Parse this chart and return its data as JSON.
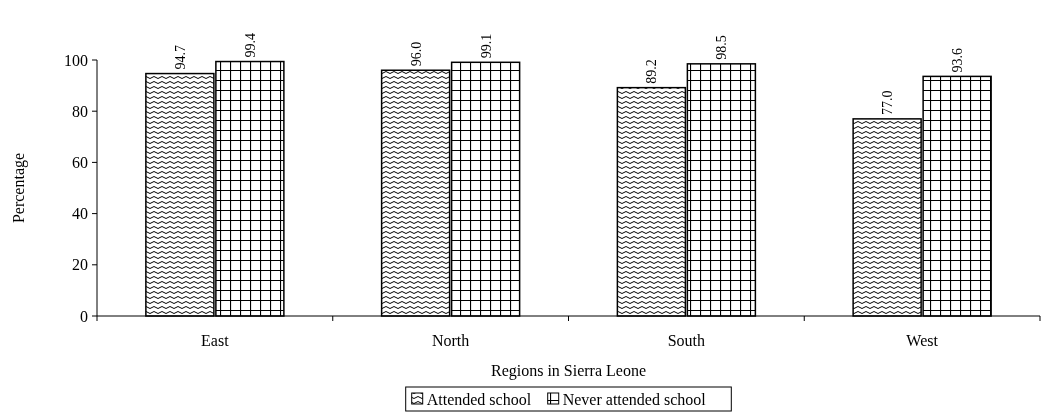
{
  "chart_data": {
    "type": "bar",
    "xlabel": "Regions in Sierra Leone",
    "ylabel": "Percentage",
    "categories": [
      "East",
      "North",
      "South",
      "West"
    ],
    "series": [
      {
        "name": "Attended school",
        "color": "#000000",
        "values": [
          94.7,
          96.0,
          89.2,
          77.0
        ],
        "value_labels": [
          "94.7",
          "96.0",
          "89.2",
          "77.0"
        ]
      },
      {
        "name": "Never attended school",
        "color": "#000000",
        "values": [
          99.4,
          99.1,
          98.5,
          93.6
        ],
        "value_labels": [
          "99.4",
          "99.1",
          "98.5",
          "93.6"
        ]
      }
    ],
    "ylim": [
      0,
      100
    ],
    "yticks": [
      0,
      20,
      40,
      60,
      80,
      100
    ],
    "legend": "bottom",
    "grid": false
  }
}
